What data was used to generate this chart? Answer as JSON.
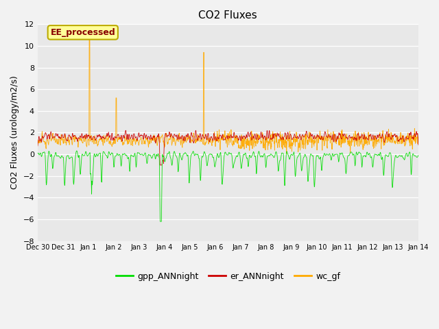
{
  "title": "CO2 Fluxes",
  "ylabel": "CO2 Fluxes (urology/m2/s)",
  "ylim": [
    -8,
    12
  ],
  "yticks": [
    -8,
    -6,
    -4,
    -2,
    0,
    2,
    4,
    6,
    8,
    10,
    12
  ],
  "xtick_labels": [
    "Dec 30",
    "Dec 31",
    "Jan 1",
    "Jan 2",
    "Jan 3",
    "Jan 4",
    "Jan 5",
    "Jan 6",
    "Jan 7",
    "Jan 8",
    "Jan 9",
    "Jan 10",
    "Jan 11",
    "Jan 12",
    "Jan 13",
    "Jan 14"
  ],
  "total_days": 15,
  "pts_per_day": 96,
  "colors": {
    "gpp": "#00dd00",
    "er": "#cc0000",
    "wc": "#ffaa00"
  },
  "fig_bg": "#f2f2f2",
  "ax_bg": "#e8e8e8",
  "grid_color": "#ffffff",
  "annotation_text": "EE_processed",
  "annotation_box_color": "#ffff99",
  "annotation_border_color": "#bbaa00",
  "annotation_text_color": "#880000",
  "legend_labels": [
    "gpp_ANNnight",
    "er_ANNnight",
    "wc_gf"
  ],
  "title_fontsize": 11,
  "ylabel_fontsize": 9,
  "tick_fontsize": 8,
  "legend_fontsize": 9
}
